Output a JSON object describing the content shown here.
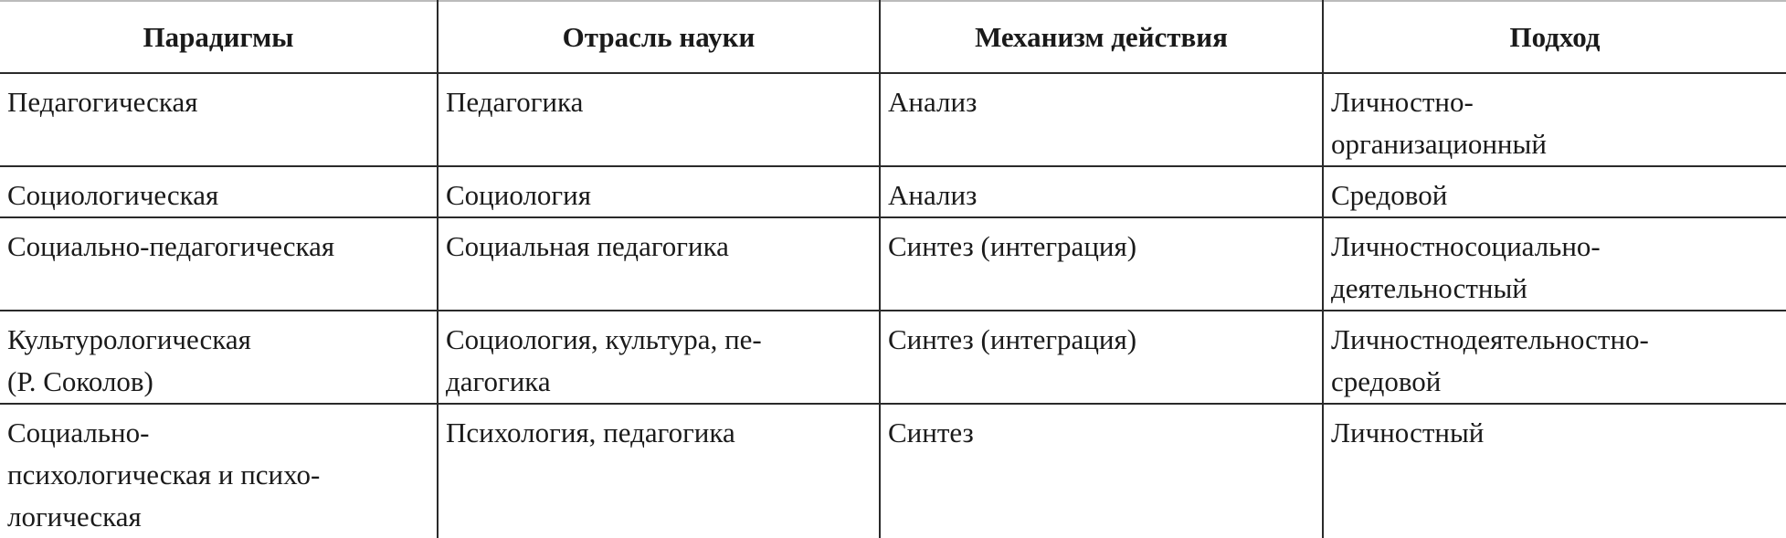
{
  "table": {
    "headers": [
      "Парадигмы",
      "Отрасль науки",
      "Механизм действия",
      "Подход"
    ],
    "rows": [
      [
        "Педагогическая",
        "Педагогика",
        "Анализ",
        "Личностно-\nорганизационный"
      ],
      [
        "Социологическая",
        "Социология",
        "Анализ",
        "Средовой"
      ],
      [
        "Социально-педагогическая",
        "Социальная педагогика",
        "Синтез (интеграция)",
        "Личностносоциально-\nдеятельностный"
      ],
      [
        "Культурологическая\n(Р. Соколов)",
        "Социология, культура, пе-\nдагогика",
        "Синтез (интеграция)",
        "Личностнодеятельностно-\nсредовой"
      ],
      [
        "Социально-\nпсихологическая и психо-\nлогическая",
        "Психология, педагогика",
        "Синтез",
        "Личностный"
      ]
    ]
  }
}
